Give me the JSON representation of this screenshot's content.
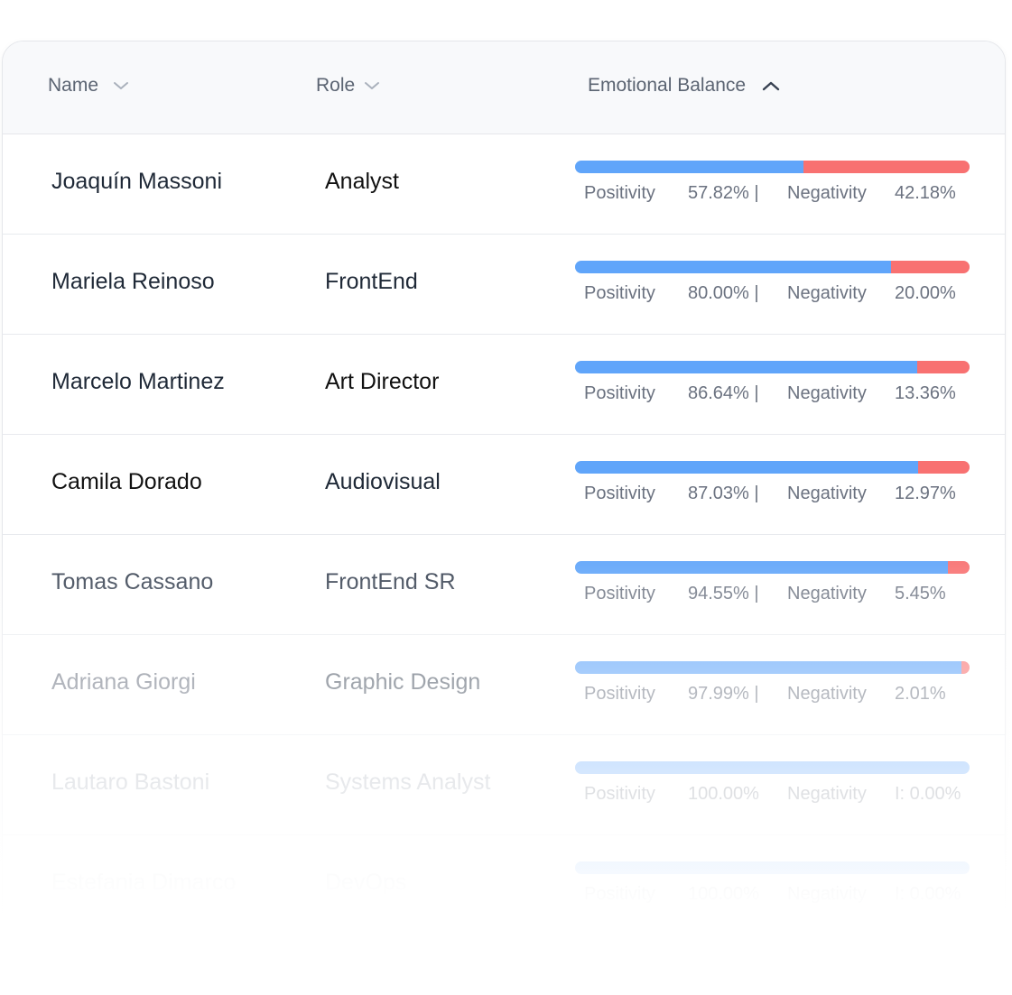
{
  "table": {
    "columns": {
      "name": "Name",
      "role": "Role",
      "balance": "Emotional Balance"
    },
    "rows": [
      {
        "name": "Joaquín Massoni",
        "role": "Analyst",
        "positivity": 0.5782,
        "pos_label": "Positivity",
        "pos_value": "57.82% |",
        "neg_label": "Negativity",
        "neg_value": "42.18%"
      },
      {
        "name": "Mariela Reinoso",
        "role": "FrontEnd",
        "positivity": 0.8,
        "pos_label": "Positivity",
        "pos_value": "80.00% |",
        "neg_label": "Negativity",
        "neg_value": "20.00%"
      },
      {
        "name": "Marcelo Martinez",
        "role": "Art Director",
        "positivity": 0.8664,
        "pos_label": "Positivity",
        "pos_value": "86.64% |",
        "neg_label": "Negativity",
        "neg_value": "13.36%"
      },
      {
        "name": "Camila Dorado",
        "role": "Audiovisual",
        "positivity": 0.8703,
        "pos_label": "Positivity",
        "pos_value": "87.03% |",
        "neg_label": "Negativity",
        "neg_value": "12.97%"
      },
      {
        "name": "Tomas Cassano",
        "role": "FrontEnd SR",
        "positivity": 0.9455,
        "pos_label": "Positivity",
        "pos_value": "94.55% |",
        "neg_label": "Negativity",
        "neg_value": "5.45%"
      },
      {
        "name": "Adriana Giorgi",
        "role": "Graphic Design",
        "positivity": 0.9799,
        "pos_label": "Positivity",
        "pos_value": "97.99% |",
        "neg_label": "Negativity",
        "neg_value": "2.01%"
      },
      {
        "name": "Lautaro Bastoni",
        "role": "Systems Analyst",
        "positivity": 1.0,
        "pos_label": "Positivity",
        "pos_value": "100.00%",
        "neg_label": "Negativity",
        "neg_value": "I: 0.00%"
      },
      {
        "name": "Estefania Dimarco",
        "role": "DevOps",
        "positivity": 1.0,
        "pos_label": "Positivity",
        "pos_value": "100.00%",
        "neg_label": "Negativity",
        "neg_value": "I: 0.00%"
      }
    ]
  },
  "colors": {
    "positive": "#60a5fa",
    "negative": "#f87171",
    "header_bg": "#f8f9fb",
    "name_text": "#1f2937",
    "muted_text": "#6b7280"
  },
  "icons": {
    "name_sort": "chevron-down-icon",
    "role_sort": "chevron-down-icon",
    "balance_sort": "chevron-up-icon"
  }
}
